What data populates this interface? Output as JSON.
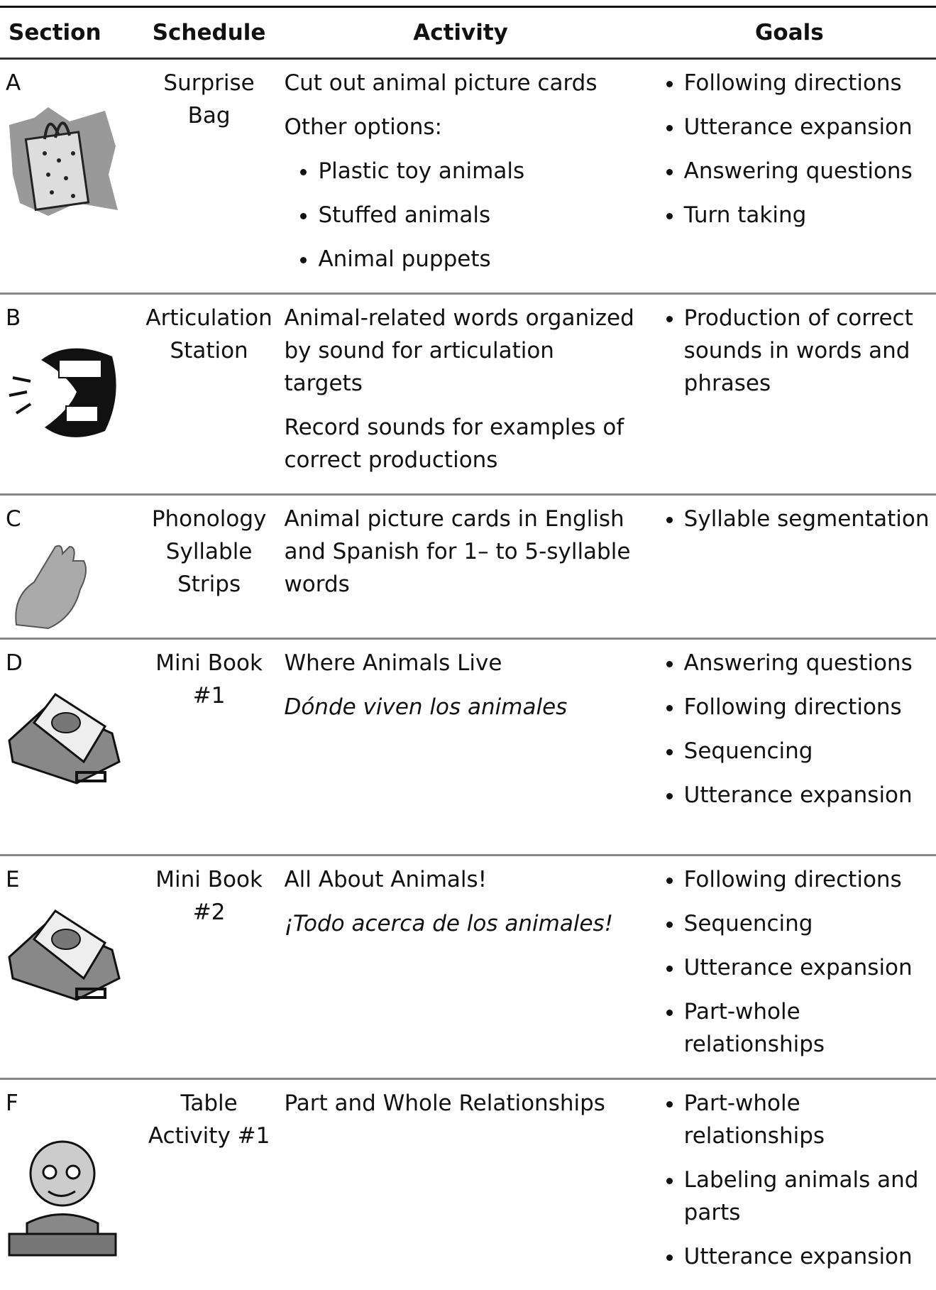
{
  "table": {
    "headers": [
      "Section",
      "Schedule",
      "Activity",
      "Goals"
    ],
    "rows": [
      {
        "section": "A",
        "schedule": "Surprise Bag",
        "activity": [
          "Cut out animal picture cards",
          "Other options:"
        ],
        "activity_options": [
          "Plastic toy animals",
          "Stuffed animals",
          "Animal puppets"
        ],
        "goals": [
          "Following directions",
          "Utterance expansion",
          "Answering questions",
          "Turn taking"
        ]
      },
      {
        "section": "B",
        "schedule": "Articulation Station",
        "activity": [
          "Animal-related words organized by sound for articulation targets",
          "Record sounds for examples of correct productions"
        ],
        "goals": [
          "Production of correct sounds in words and phrases"
        ]
      },
      {
        "section": "C",
        "schedule": "Phonology Syllable Strips",
        "activity": [
          "Animal picture cards in English and Spanish for 1– to 5-syllable words"
        ],
        "goals": [
          "Syllable segmentation"
        ]
      },
      {
        "section": "D",
        "schedule": "Mini Book #1",
        "activity": [
          "Where Animals Live"
        ],
        "activity_spanish": "Dónde viven los animales",
        "goals": [
          "Answering questions",
          "Following directions",
          "Sequencing",
          "Utterance expansion"
        ]
      },
      {
        "section": "E",
        "schedule": "Mini Book #2",
        "activity": [
          "All About Animals!"
        ],
        "activity_spanish": "¡Todo acerca de los animales!",
        "goals": [
          "Following directions",
          "Sequencing",
          "Utterance expansion",
          "Part-whole relationships"
        ]
      },
      {
        "section": "F",
        "schedule": "Table Activity #1",
        "activity": [
          "Part and Whole Relationships"
        ],
        "goals": [
          "Part-whole relationships",
          "Labeling animals and parts",
          "Utterance expansion"
        ]
      }
    ]
  }
}
